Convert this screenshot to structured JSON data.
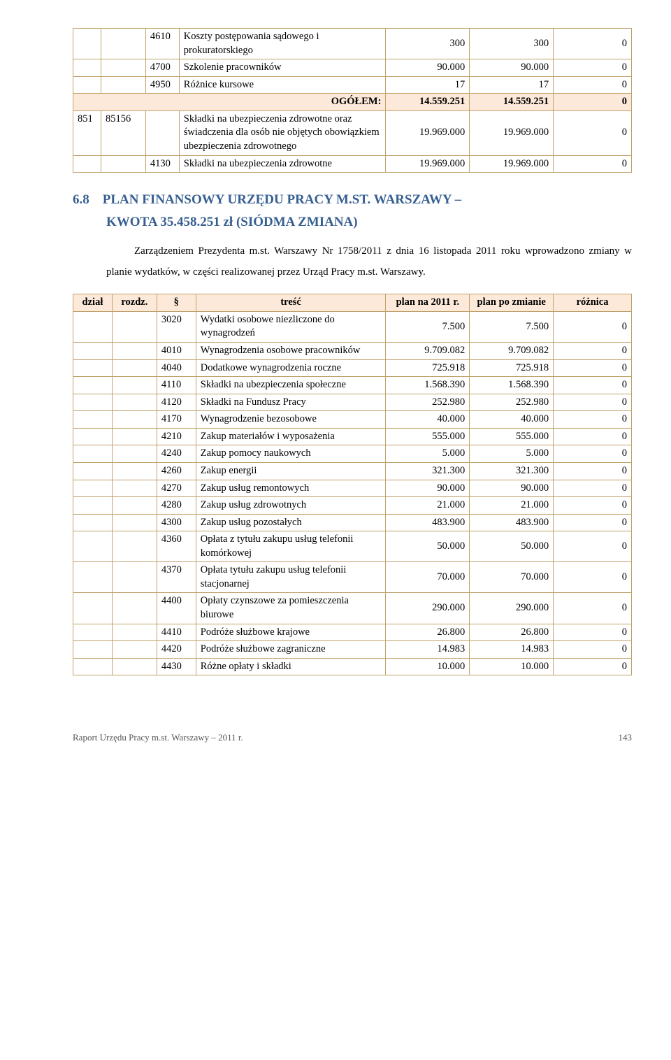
{
  "colors": {
    "border": "#bfa26a",
    "highlight_bg": "#fde9d9",
    "heading": "#365f91",
    "text": "#000000",
    "background": "#ffffff"
  },
  "table1": {
    "col_widths_pct": [
      5,
      8,
      6,
      37,
      15,
      15,
      14
    ],
    "rows": [
      {
        "c": [
          "",
          "",
          "4610",
          "Koszty postępowania sądowego i prokuratorskiego",
          "300",
          "300",
          "0"
        ]
      },
      {
        "c": [
          "",
          "",
          "4700",
          "Szkolenie pracowników",
          "90.000",
          "90.000",
          "0"
        ]
      },
      {
        "c": [
          "",
          "",
          "4950",
          "Różnice kursowe",
          "17",
          "17",
          "0"
        ]
      },
      {
        "ogolem": true,
        "label": "OGÓŁEM:",
        "v1": "14.559.251",
        "v2": "14.559.251",
        "v3": "0"
      },
      {
        "c": [
          "851",
          "85156",
          "",
          "Składki na ubezpieczenia zdrowotne oraz świadczenia dla osób nie objętych obowiązkiem ubezpieczenia zdrowotnego",
          "19.969.000",
          "19.969.000",
          "0"
        ]
      },
      {
        "c": [
          "",
          "",
          "4130",
          "Składki na ubezpieczenia zdrowotne",
          "19.969.000",
          "19.969.000",
          "0"
        ]
      }
    ]
  },
  "heading": {
    "num": "6.8",
    "line1": "PLAN FINANSOWY URZĘDU PRACY M.ST. WARSZAWY –",
    "line2": "KWOTA 35.458.251 zł (SIÓDMA ZMIANA)"
  },
  "paragraph": "Zarządzeniem Prezydenta m.st. Warszawy Nr 1758/2011 z dnia 16 listopada 2011 roku wprowadzono zmiany w planie wydatków, w części realizowanej przez Urząd Pracy m.st. Warszawy.",
  "table2": {
    "col_widths_pct": [
      7,
      8,
      7,
      34,
      15,
      15,
      14
    ],
    "header": [
      "dział",
      "rozdz.",
      "§",
      "treść",
      "plan na 2011 r.",
      "plan po zmianie",
      "różnica"
    ],
    "rows": [
      {
        "c": [
          "",
          "",
          "3020",
          "Wydatki osobowe niezliczone do wynagrodzeń",
          "7.500",
          "7.500",
          "0"
        ]
      },
      {
        "c": [
          "",
          "",
          "4010",
          "Wynagrodzenia osobowe pracowników",
          "9.709.082",
          "9.709.082",
          "0"
        ]
      },
      {
        "c": [
          "",
          "",
          "4040",
          "Dodatkowe wynagrodzenia roczne",
          "725.918",
          "725.918",
          "0"
        ]
      },
      {
        "c": [
          "",
          "",
          "4110",
          "Składki na ubezpieczenia społeczne",
          "1.568.390",
          "1.568.390",
          "0"
        ]
      },
      {
        "c": [
          "",
          "",
          "4120",
          "Składki na Fundusz Pracy",
          "252.980",
          "252.980",
          "0"
        ]
      },
      {
        "c": [
          "",
          "",
          "4170",
          "Wynagrodzenie bezosobowe",
          "40.000",
          "40.000",
          "0"
        ]
      },
      {
        "c": [
          "",
          "",
          "4210",
          "Zakup materiałów i wyposażenia",
          "555.000",
          "555.000",
          "0"
        ]
      },
      {
        "c": [
          "",
          "",
          "4240",
          "Zakup pomocy naukowych",
          "5.000",
          "5.000",
          "0"
        ]
      },
      {
        "c": [
          "",
          "",
          "4260",
          "Zakup energii",
          "321.300",
          "321.300",
          "0"
        ]
      },
      {
        "c": [
          "",
          "",
          "4270",
          "Zakup usług remontowych",
          "90.000",
          "90.000",
          "0"
        ]
      },
      {
        "c": [
          "",
          "",
          "4280",
          "Zakup usług zdrowotnych",
          "21.000",
          "21.000",
          "0"
        ]
      },
      {
        "c": [
          "",
          "",
          "4300",
          "Zakup usług pozostałych",
          "483.900",
          "483.900",
          "0"
        ]
      },
      {
        "c": [
          "",
          "",
          "4360",
          "Opłata z tytułu zakupu usług telefonii komórkowej",
          "50.000",
          "50.000",
          "0"
        ]
      },
      {
        "c": [
          "",
          "",
          "4370",
          "Opłata tytułu zakupu usług telefonii stacjonarnej",
          "70.000",
          "70.000",
          "0"
        ]
      },
      {
        "c": [
          "",
          "",
          "4400",
          "Opłaty czynszowe za pomieszczenia biurowe",
          "290.000",
          "290.000",
          "0"
        ]
      },
      {
        "c": [
          "",
          "",
          "4410",
          "Podróże służbowe krajowe",
          "26.800",
          "26.800",
          "0"
        ]
      },
      {
        "c": [
          "",
          "",
          "4420",
          "Podróże służbowe zagraniczne",
          "14.983",
          "14.983",
          "0"
        ]
      },
      {
        "c": [
          "",
          "",
          "4430",
          "Różne opłaty i składki",
          "10.000",
          "10.000",
          "0"
        ]
      }
    ]
  },
  "footer": {
    "left": "Raport Urzędu Pracy m.st. Warszawy – 2011 r.",
    "page": "143"
  }
}
